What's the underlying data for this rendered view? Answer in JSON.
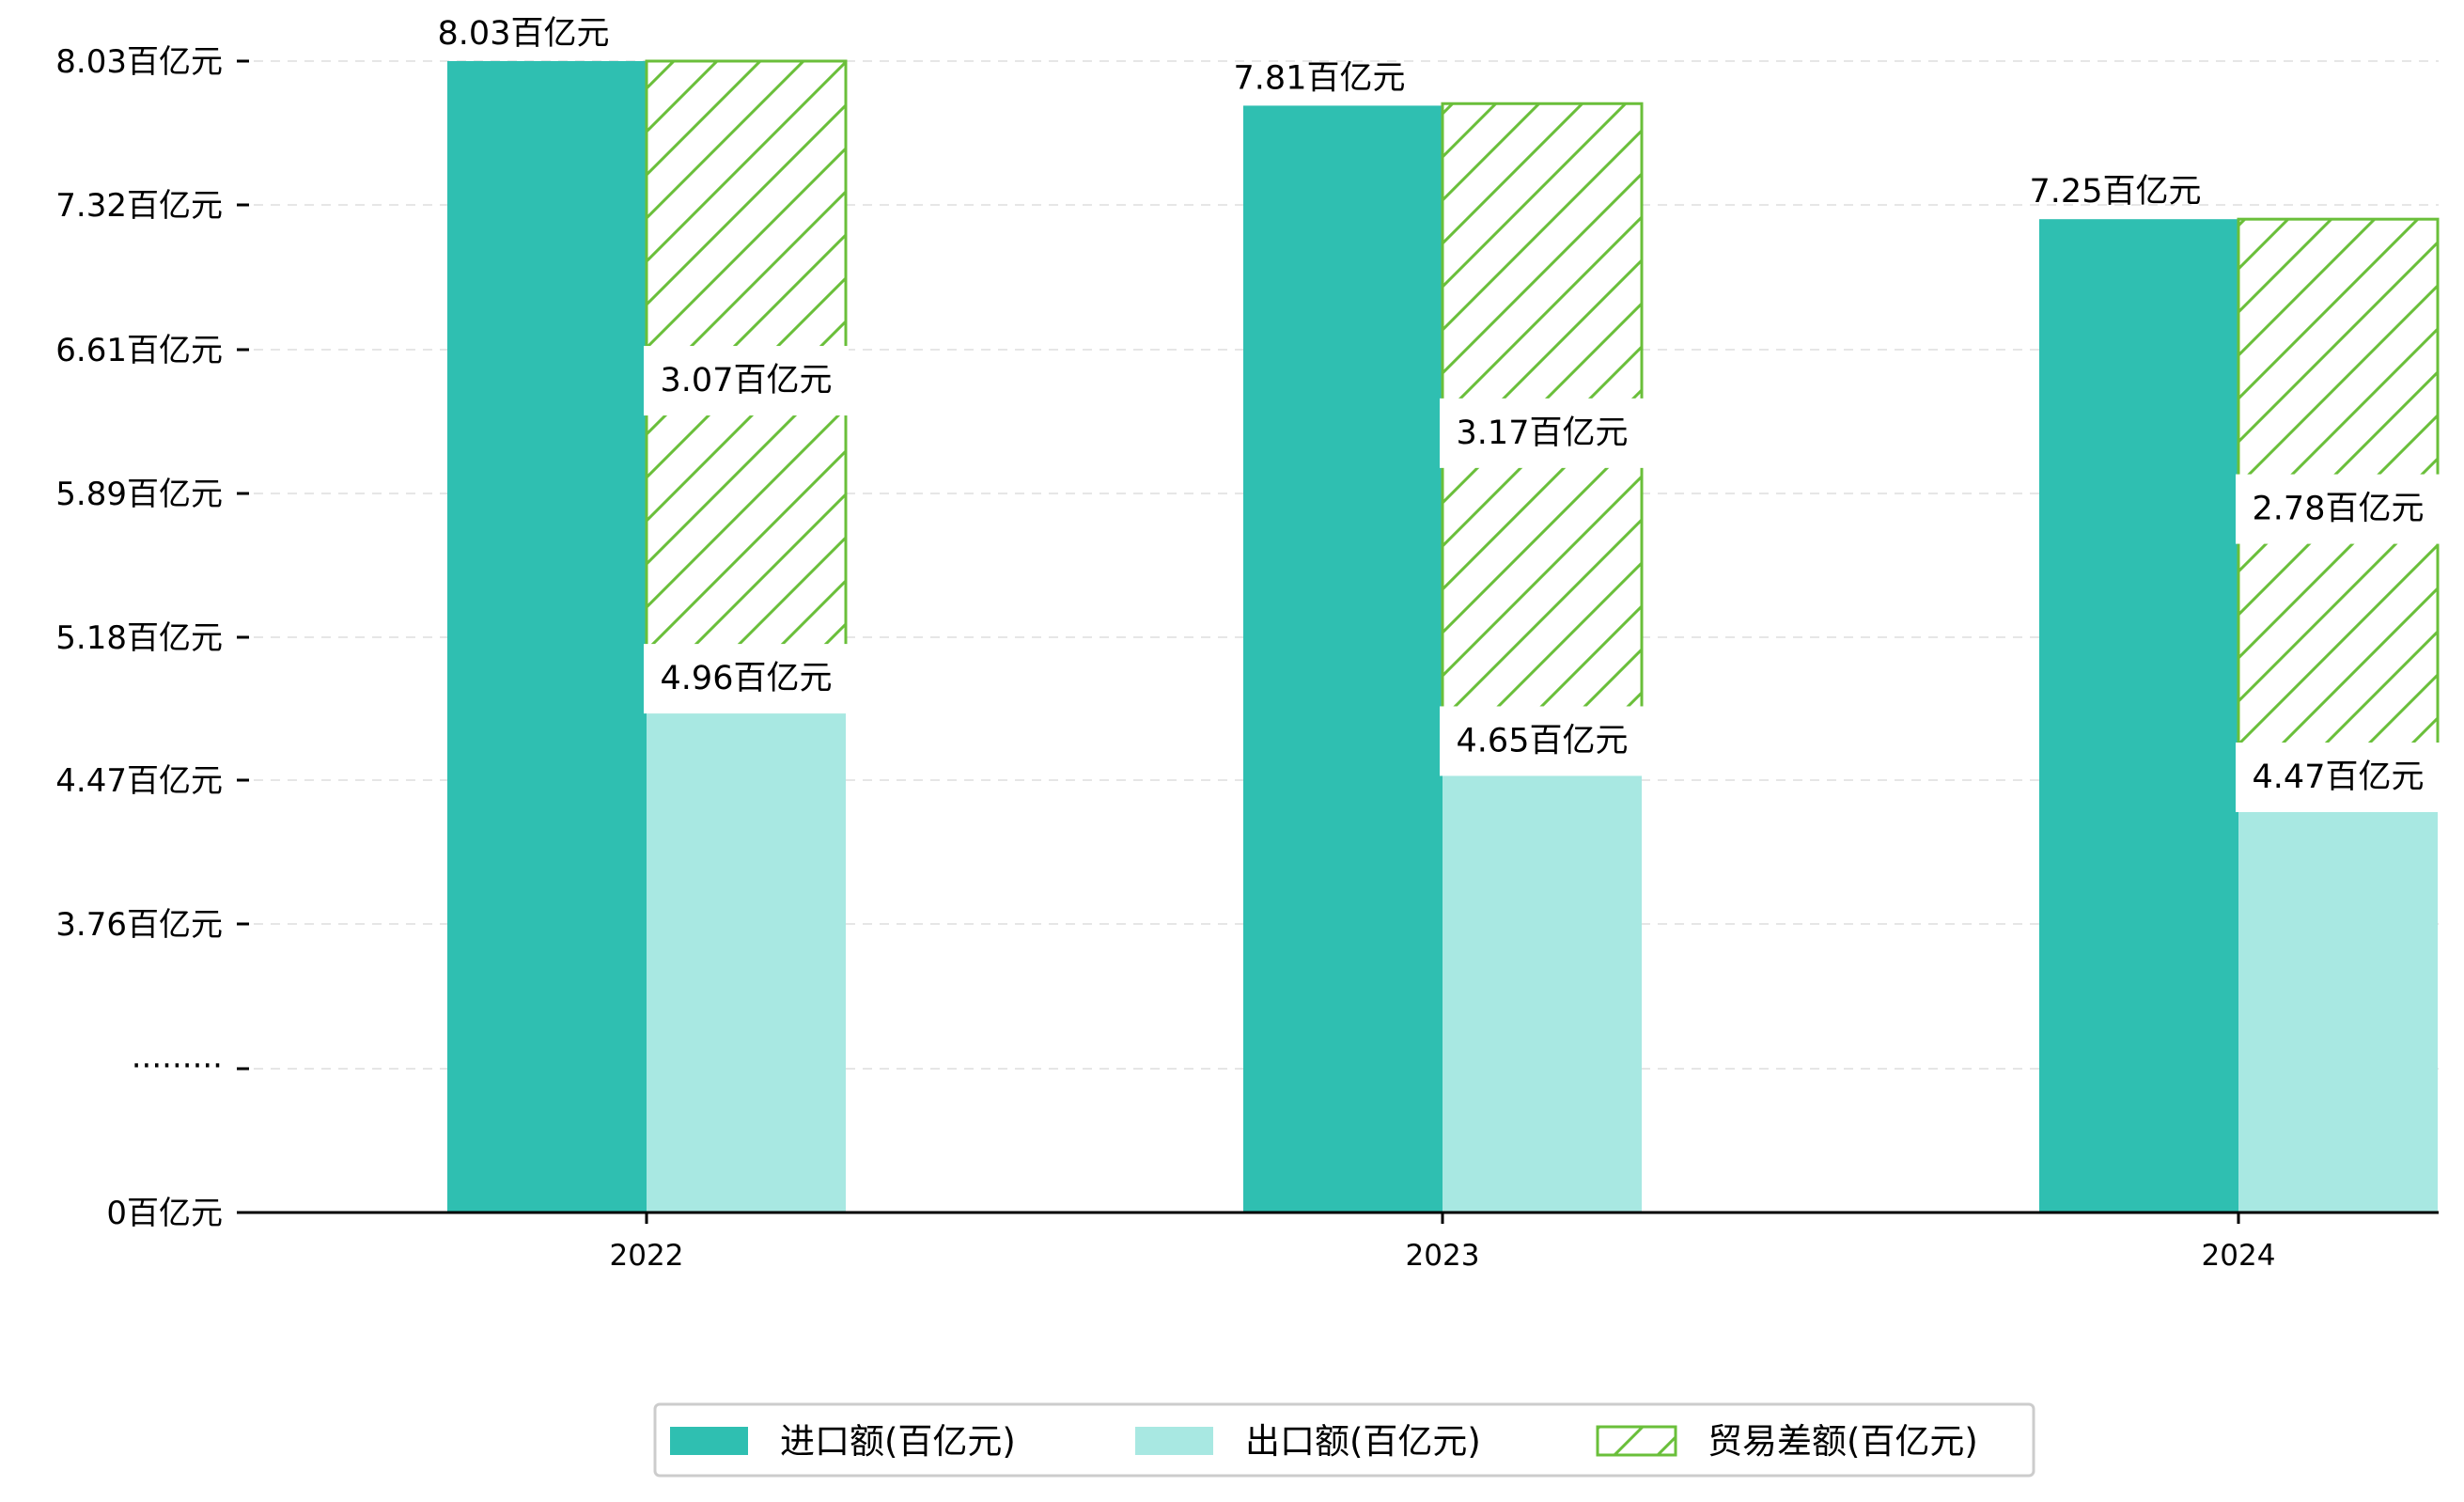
{
  "chart_data": {
    "type": "bar",
    "title": "",
    "xlabel": "",
    "ylabel": "",
    "categories": [
      "2022",
      "2023",
      "2024"
    ],
    "series": [
      {
        "name": "进口额(百亿元)",
        "values": [
          8.03,
          7.81,
          7.25
        ],
        "labels": [
          "8.03百亿元",
          "7.81百亿元",
          "7.25百亿元"
        ],
        "color": "#2fbfb1"
      },
      {
        "name": "出口额(百亿元)",
        "values": [
          4.96,
          4.65,
          4.47
        ],
        "labels": [
          "4.96百亿元",
          "4.65百亿元",
          "4.47百亿元"
        ],
        "color": "#a8e8e2"
      },
      {
        "name": "贸易差额(百亿元)",
        "values": [
          3.07,
          3.17,
          2.78
        ],
        "labels": [
          "3.07百亿元",
          "3.17百亿元",
          "2.78百亿元"
        ],
        "color": "#6abf3a",
        "stacked_on": "出口额(百亿元)",
        "hatch": "diagonal"
      }
    ],
    "y_axis": {
      "scale": "broken",
      "break_label": "·········",
      "ticks": [
        0,
        3.76,
        4.47,
        5.18,
        5.89,
        6.61,
        7.32,
        8.03
      ],
      "tick_labels": [
        "0百亿元",
        "3.76百亿元",
        "4.47百亿元",
        "5.18百亿元",
        "5.89百亿元",
        "6.61百亿元",
        "7.32百亿元",
        "8.03百亿元"
      ]
    },
    "grid": "horizontal-dashed",
    "legend_position": "bottom-center"
  }
}
